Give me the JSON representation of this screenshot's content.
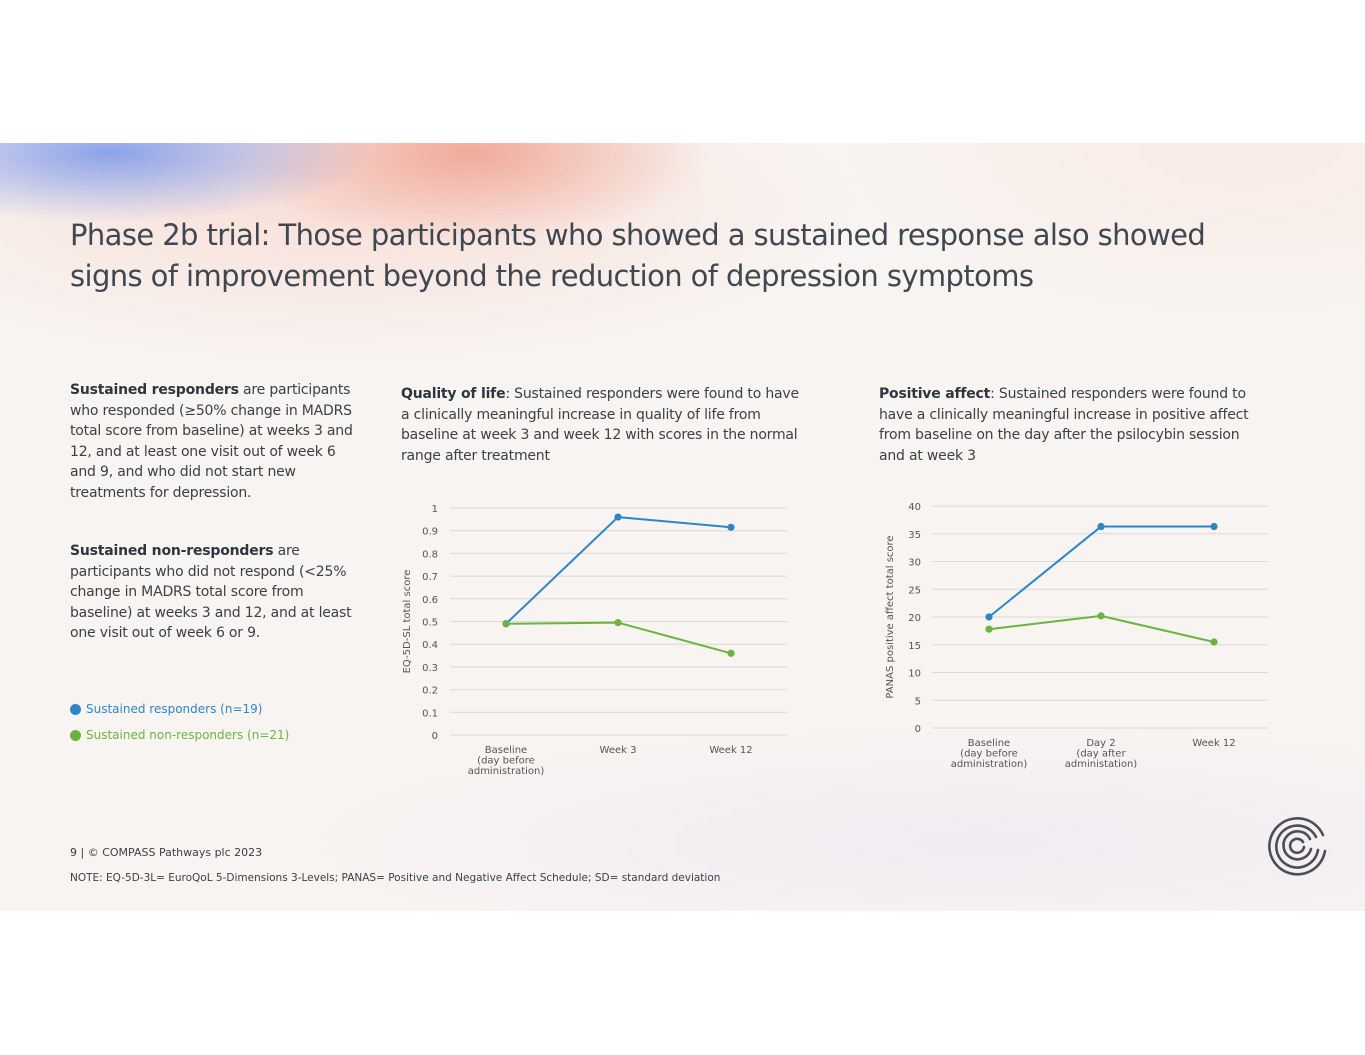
{
  "slide": {
    "title": "Phase 2b trial: Those participants who showed a sustained response also showed signs of improvement beyond the reduction of depression symptoms",
    "definitions": [
      {
        "term": "Sustained responders",
        "text": " are participants who responded (≥50% change in MADRS total score from baseline) at weeks 3 and 12, and at least one visit out of week 6 and 9, and who did not start new treatments for depression."
      },
      {
        "term": "Sustained non-responders",
        "text": " are participants who did not respond (<25% change in MADRS total score from baseline) at weeks 3 and 12, and at least one visit out of week 6 or 9."
      }
    ],
    "legend": [
      {
        "label": "Sustained responders (n=19)",
        "color": "#2e86c8"
      },
      {
        "label": "Sustained non-responders (n=21)",
        "color": "#6cb33f"
      }
    ],
    "descriptions": [
      {
        "term": "Quality of life",
        "text": ": Sustained responders were found to have a clinically meaningful increase in quality of life from baseline at week 3 and week 12 with scores in the normal range after treatment"
      },
      {
        "term": "Positive affect",
        "text": ": Sustained responders were found to have a clinically meaningful increase in positive affect from baseline on the day after the psilocybin session and at week 3"
      }
    ],
    "footer": "9  |  © COMPASS Pathways plc 2023",
    "note": "NOTE: EQ-5D-3L= EuroQoL 5-Dimensions 3-Levels; PANAS= Positive and Negative Affect Schedule; SD= standard deviation"
  },
  "chart_data": [
    {
      "type": "line",
      "ylabel": "EQ-5D-SL total score",
      "categories": [
        [
          "Baseline",
          "(day before",
          "administration)"
        ],
        [
          "Week 3"
        ],
        [
          "Week 12"
        ]
      ],
      "ylim": [
        0,
        1
      ],
      "yticks": [
        0,
        0.1,
        0.2,
        0.3,
        0.4,
        0.5,
        0.6,
        0.7,
        0.8,
        0.9,
        1
      ],
      "grid": true,
      "series": [
        {
          "name": "Sustained responders (n=19)",
          "color": "#2e86c8",
          "values": [
            0.49,
            0.96,
            0.915
          ]
        },
        {
          "name": "Sustained non-responders (n=21)",
          "color": "#6cb33f",
          "values": [
            0.49,
            0.495,
            0.36
          ]
        }
      ]
    },
    {
      "type": "line",
      "ylabel": "PANAS positive affect total score",
      "categories": [
        [
          "Baseline",
          "(day before",
          "administration)"
        ],
        [
          "Day 2",
          "(day after",
          "administation)"
        ],
        [
          "Week 12"
        ]
      ],
      "ylim": [
        0,
        40
      ],
      "yticks": [
        0,
        5,
        10,
        15,
        20,
        25,
        30,
        35,
        40
      ],
      "grid": true,
      "series": [
        {
          "name": "Sustained responders (n=19)",
          "color": "#2e86c8",
          "values": [
            20,
            36.3,
            36.3
          ]
        },
        {
          "name": "Sustained non-responders (n=21)",
          "color": "#6cb33f",
          "values": [
            17.8,
            20.2,
            15.5
          ]
        }
      ]
    }
  ]
}
